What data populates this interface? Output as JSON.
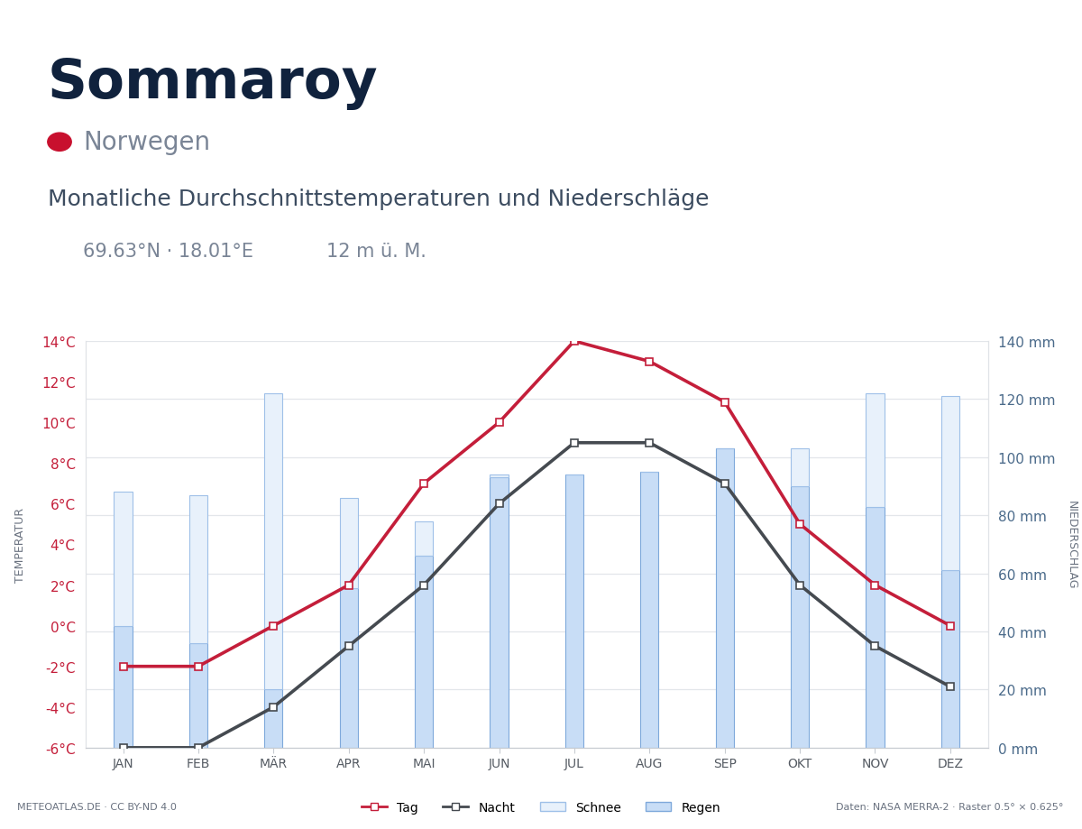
{
  "chart_data": {
    "type": "combo",
    "title": "Sommaroy",
    "subtitle": "Norwegen",
    "heading": "Monatliche Durchschnittstemperaturen und Niederschläge",
    "coordinates": "69.63°N · 18.01°E",
    "elevation": "12 m ü. M.",
    "credit": "METEOATLAS.DE · CC BY-ND 4.0",
    "source": "Daten: NASA MERRA-2 · Raster 0.5° × 0.625°",
    "y_label": "TEMPERATUR",
    "y2_label": "NIEDERSCHLAG",
    "categories": [
      "JAN",
      "FEB",
      "MÄR",
      "APR",
      "MAI",
      "JUN",
      "JUL",
      "AUG",
      "SEP",
      "OKT",
      "NOV",
      "DEZ"
    ],
    "series": [
      {
        "name": "Tag",
        "type": "line",
        "color": "#c41e3a",
        "marker": "square",
        "line_style": "solid",
        "values": [
          -2,
          -2,
          0,
          2,
          7,
          10,
          14,
          13,
          11,
          5,
          2,
          0
        ]
      },
      {
        "name": "Nacht",
        "type": "line",
        "color": "#454a50",
        "marker": "square",
        "line_style": "solid",
        "values": [
          -6,
          -6,
          -4,
          -1,
          2,
          6,
          9,
          9,
          7,
          2,
          -1,
          -3
        ]
      },
      {
        "name": "Regen",
        "type": "bar",
        "axis": "y2",
        "color": "#c8ddf6",
        "values": [
          42,
          36,
          20,
          55,
          66,
          93,
          94,
          95,
          103,
          90,
          83,
          61
        ]
      },
      {
        "name": "Schnee",
        "type": "bar",
        "axis": "y2",
        "color": "#e8f1fb",
        "values": [
          46,
          51,
          102,
          31,
          12,
          1,
          0,
          0,
          0,
          13,
          39,
          60
        ]
      }
    ],
    "stacked": true,
    "ylim": [
      -6,
      14
    ],
    "yticks": [
      {
        "value": -6,
        "label": "-6°C"
      },
      {
        "value": -4,
        "label": "-4°C"
      },
      {
        "value": -2,
        "label": "-2°C"
      },
      {
        "value": 0,
        "label": "0°C"
      },
      {
        "value": 2,
        "label": "2°C"
      },
      {
        "value": 4,
        "label": "4°C"
      },
      {
        "value": 6,
        "label": "6°C"
      },
      {
        "value": 8,
        "label": "8°C"
      },
      {
        "value": 10,
        "label": "10°C"
      },
      {
        "value": 12,
        "label": "12°C"
      },
      {
        "value": 14,
        "label": "14°C"
      }
    ],
    "y2lim": [
      0,
      140
    ],
    "y2ticks": [
      {
        "value": 0,
        "label": "0 mm"
      },
      {
        "value": 20,
        "label": "20 mm"
      },
      {
        "value": 40,
        "label": "40 mm"
      },
      {
        "value": 60,
        "label": "60 mm"
      },
      {
        "value": 80,
        "label": "80 mm"
      },
      {
        "value": 100,
        "label": "100 mm"
      },
      {
        "value": 120,
        "label": "120 mm"
      },
      {
        "value": 140,
        "label": "140 mm"
      }
    ],
    "grid": true,
    "legend": "lower center"
  }
}
